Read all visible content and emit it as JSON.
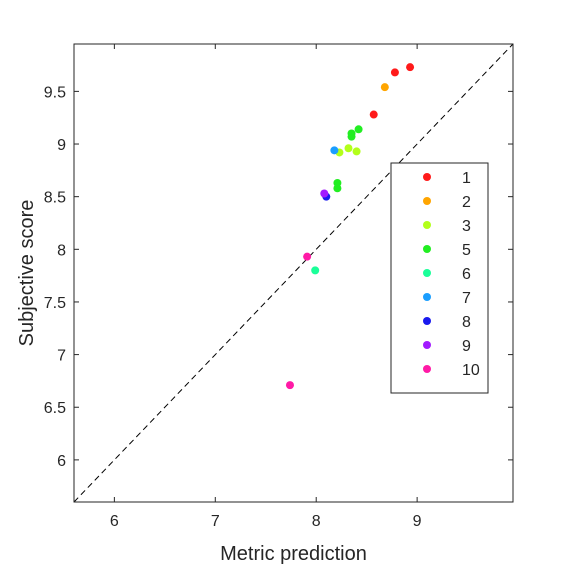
{
  "chart_data": {
    "type": "scatter",
    "title": "",
    "xlabel": "Metric prediction",
    "ylabel": "Subjective score",
    "xlim": [
      5.6,
      9.95
    ],
    "ylim": [
      5.6,
      9.95
    ],
    "xticks": [
      6,
      7,
      8,
      9
    ],
    "yticks": [
      6,
      6.5,
      7,
      7.5,
      8,
      8.5,
      9,
      9.5
    ],
    "xtick_labels": [
      "6",
      "7",
      "8",
      "9"
    ],
    "ytick_labels": [
      "6",
      "6.5",
      "7",
      "7.5",
      "8",
      "8.5",
      "9",
      "9.5"
    ],
    "grid": false,
    "reference_line": "y = x (dashed)",
    "legend_position": "right",
    "series": [
      {
        "name": "1",
        "color": "#ff1a1a",
        "points": [
          [
            8.93,
            9.73
          ],
          [
            8.78,
            9.68
          ],
          [
            8.57,
            9.28
          ]
        ]
      },
      {
        "name": "2",
        "color": "#ffa500",
        "points": [
          [
            8.68,
            9.54
          ]
        ]
      },
      {
        "name": "3",
        "color": "#b3ff1a",
        "points": [
          [
            8.23,
            8.92
          ],
          [
            8.32,
            8.96
          ],
          [
            8.4,
            8.93
          ]
        ]
      },
      {
        "name": "5",
        "color": "#22ee22",
        "points": [
          [
            8.35,
            9.1
          ],
          [
            8.35,
            9.07
          ],
          [
            8.42,
            9.14
          ],
          [
            8.21,
            8.63
          ],
          [
            8.21,
            8.58
          ]
        ]
      },
      {
        "name": "6",
        "color": "#1aff99",
        "points": [
          [
            7.99,
            7.8
          ]
        ]
      },
      {
        "name": "7",
        "color": "#1a9eff",
        "points": [
          [
            8.18,
            8.94
          ]
        ]
      },
      {
        "name": "8",
        "color": "#1a1aee",
        "points": [
          [
            8.1,
            8.5
          ]
        ]
      },
      {
        "name": "9",
        "color": "#a21aff",
        "points": [
          [
            8.08,
            8.53
          ]
        ]
      },
      {
        "name": "10",
        "color": "#ff1aa6",
        "points": [
          [
            7.91,
            7.93
          ],
          [
            7.74,
            6.71
          ]
        ]
      }
    ]
  }
}
